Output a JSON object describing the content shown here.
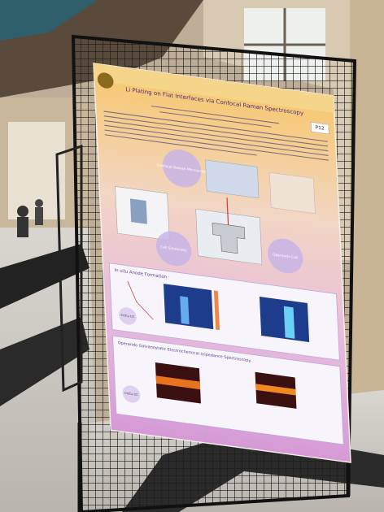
{
  "poster": {
    "title": "Li Plating on Flat Interfaces via Confocal Raman Spectroscopy",
    "board_number": "P12",
    "diagram_labels": [
      "Confocal Raman Microscope",
      "Cell Schematic",
      "Operando Cell"
    ],
    "sections": [
      {
        "title": "In situ Anode Formation",
        "badge": "Cr/Cu CC"
      },
      {
        "title": "Operando Galvanostatic Electrochemical Impedance Spectroscopy",
        "badge": "Cr/Cu CC"
      }
    ]
  }
}
